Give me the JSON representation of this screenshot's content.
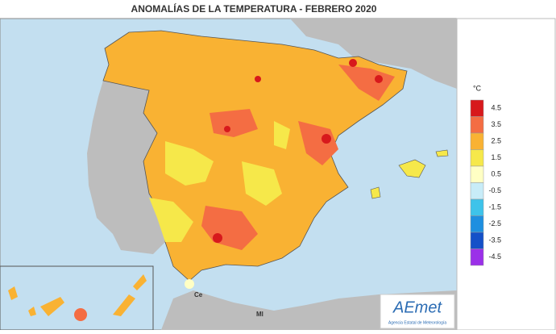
{
  "header": {
    "title": "ANOMALÍAS DE LA TEMPERATURA - FEBRERO 2020"
  },
  "legend": {
    "unit": "°C",
    "items": [
      {
        "label": 4.5,
        "color": "#d7191c"
      },
      {
        "label": 3.5,
        "color": "#f46d43"
      },
      {
        "label": 2.5,
        "color": "#f9b233"
      },
      {
        "label": 1.5,
        "color": "#f6e84a"
      },
      {
        "label": 0.5,
        "color": "#ffffc4"
      },
      {
        "label": -0.5,
        "color": "#c8ecf8"
      },
      {
        "label": -1.5,
        "color": "#3ec3ea"
      },
      {
        "label": -2.5,
        "color": "#1e8fe0"
      },
      {
        "label": -3.5,
        "color": "#1450c8"
      },
      {
        "label": -4.5,
        "color": "#9b30e8"
      }
    ]
  },
  "map": {
    "places": [
      "Ce",
      "Ml"
    ]
  },
  "logo": {
    "name": "AEmet",
    "caption": "Agencia Estatal de Meteorología"
  }
}
